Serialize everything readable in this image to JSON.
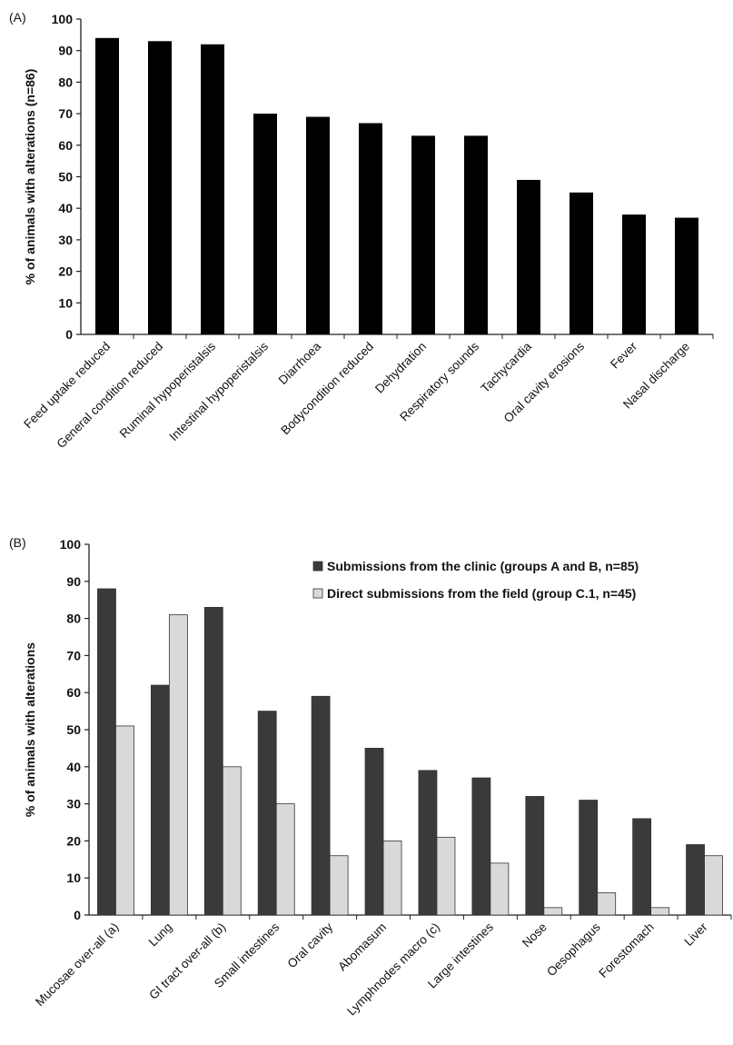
{
  "chart_data": [
    {
      "panel_label": "(A)",
      "type": "bar",
      "ylabel": "% of animals with alterations (n=86)",
      "ylim": [
        0,
        100
      ],
      "yticks": [
        "0",
        "10",
        "20",
        "30",
        "40",
        "50",
        "60",
        "70",
        "80",
        "90",
        "100"
      ],
      "grid": false,
      "categories": [
        "Feed uptake reduced",
        "General condition reduced",
        "Ruminal hypoperistalsis",
        "Intestinal hypoperistalsis",
        "Diarrhoea",
        "Bodycondition reduced",
        "Dehydration",
        "Respiratory sounds",
        "Tachycardia",
        "Oral cavity erosions",
        "Fever",
        "Nasal discharge"
      ],
      "series": [
        {
          "color": "#000000",
          "values": [
            94,
            93,
            92,
            70,
            69,
            67,
            63,
            63,
            49,
            45,
            38,
            37
          ]
        }
      ]
    },
    {
      "panel_label": "(B)",
      "type": "bar",
      "ylabel": "% of animals with alterations",
      "ylim": [
        0,
        100
      ],
      "yticks": [
        "0",
        "10",
        "20",
        "30",
        "40",
        "50",
        "60",
        "70",
        "80",
        "90",
        "100"
      ],
      "grid": false,
      "legend_position": "top-right",
      "categories": [
        "Mucosae over-all  (a)",
        "Lung",
        "GI tract over-all (b)",
        "Small intestines",
        "Oral cavity",
        "Abomasum",
        "Lymphnodes macro (c)",
        "Large intestines",
        "Nose",
        "Oesophagus",
        "Forestomach",
        "Liver"
      ],
      "series": [
        {
          "name": "Submissions from the clinic (groups A and B, n=85)",
          "color": "#3a3a3a",
          "values": [
            88,
            62,
            83,
            55,
            59,
            45,
            39,
            37,
            32,
            31,
            26,
            19
          ]
        },
        {
          "name": "Direct submissions from the field (group C.1, n=45)",
          "color": "#d9d9d9",
          "values": [
            51,
            81,
            40,
            30,
            16,
            20,
            21,
            14,
            2,
            6,
            2,
            16
          ]
        }
      ]
    }
  ]
}
